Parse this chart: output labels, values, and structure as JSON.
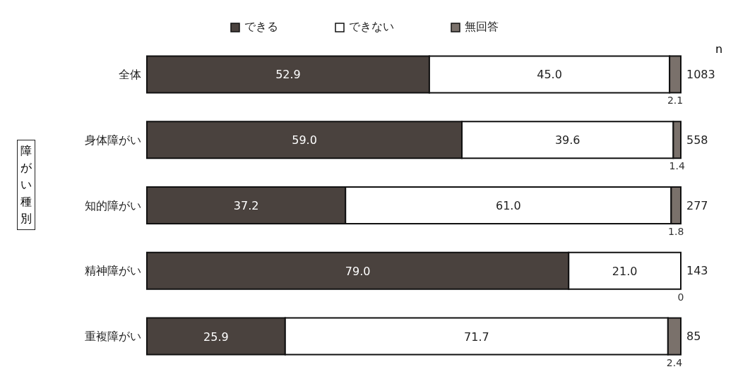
{
  "chart_data": {
    "type": "bar",
    "orientation": "horizontal",
    "stacked": true,
    "ylabel": "障がい種別",
    "categories": [
      "全体",
      "身体障がい",
      "知的障がい",
      "精神障がい",
      "重複障がい"
    ],
    "series": [
      {
        "name": "できる",
        "color": "#4a423e",
        "values": [
          52.9,
          59.0,
          37.2,
          79.0,
          25.9
        ],
        "value_labels": [
          "52.9",
          "59.0",
          "37.2",
          "79.0",
          "25.9"
        ]
      },
      {
        "name": "できない",
        "color": "#ffffff",
        "values": [
          45.0,
          39.6,
          61.0,
          21.0,
          71.7
        ],
        "value_labels": [
          "45.0",
          "39.6",
          "61.0",
          "21.0",
          "71.7"
        ]
      },
      {
        "name": "無回答",
        "color": "#7a716b",
        "values": [
          2.1,
          1.4,
          1.8,
          0,
          2.4
        ],
        "value_labels": [
          "2.1",
          "1.4",
          "1.8",
          "0",
          "2.4"
        ]
      }
    ],
    "legend": "top",
    "grid": false,
    "annotations": [
      "n",
      "1083",
      "558",
      "277",
      "143",
      "85"
    ]
  }
}
